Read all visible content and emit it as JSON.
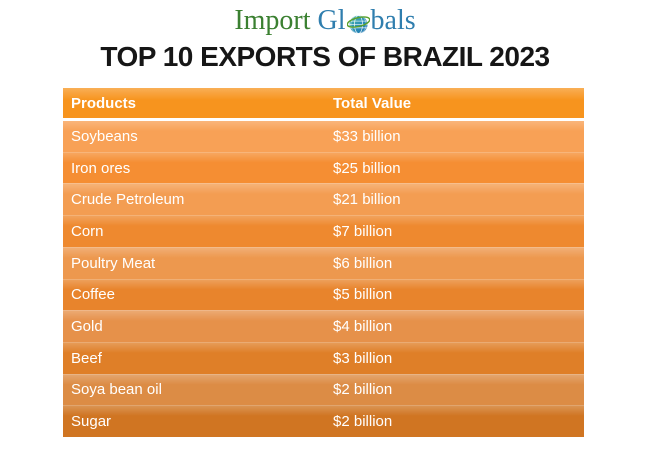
{
  "logo": {
    "text_part1": "Import ",
    "text_part2": "Gl",
    "text_part3": "bals",
    "green_color": "#3b8031",
    "blue_color": "#2f7eae"
  },
  "title": "TOP 10 EXPORTS OF BRAZIL 2023",
  "table": {
    "header_bg": "#F7941E",
    "headers": {
      "products": "Products",
      "total_value": "Total Value"
    },
    "rows": [
      {
        "product": "Soybeans",
        "value": "$33 billion",
        "bg": "#F8A156"
      },
      {
        "product": "Iron ores",
        "value": "$25 billion",
        "bg": "#F58E33"
      },
      {
        "product": "Crude Petroleum",
        "value": "$21 billion",
        "bg": "#F39D52"
      },
      {
        "product": "Corn",
        "value": "$7 billion",
        "bg": "#EE892F"
      },
      {
        "product": "Poultry Meat",
        "value": "$6 billion",
        "bg": "#ED984E"
      },
      {
        "product": "Coffee",
        "value": "$5 billion",
        "bg": "#E8842C"
      },
      {
        "product": "Gold",
        "value": "$4 billion",
        "bg": "#E6914A"
      },
      {
        "product": "Beef",
        "value": "$3 billion",
        "bg": "#DF7F28"
      },
      {
        "product": "Soya bean oil",
        "value": "$2 billion",
        "bg": "#DC8C45"
      },
      {
        "product": "Sugar",
        "value": "$2 billion",
        "bg": "#D07522"
      }
    ]
  },
  "chart_data": {
    "type": "table",
    "title": "TOP 10 EXPORTS OF BRAZIL 2023",
    "columns": [
      "Products",
      "Total Value"
    ],
    "rows": [
      [
        "Soybeans",
        "$33 billion"
      ],
      [
        "Iron ores",
        "$25 billion"
      ],
      [
        "Crude Petroleum",
        "$21 billion"
      ],
      [
        "Corn",
        "$7 billion"
      ],
      [
        "Poultry Meat",
        "$6 billion"
      ],
      [
        "Coffee",
        "$5 billion"
      ],
      [
        "Gold",
        "$4 billion"
      ],
      [
        "Beef",
        "$3 billion"
      ],
      [
        "Soya bean oil",
        "$2 billion"
      ],
      [
        "Sugar",
        "$2 billion"
      ]
    ],
    "values_numeric_usd_billion": [
      33,
      25,
      21,
      7,
      6,
      5,
      4,
      3,
      2,
      2
    ]
  }
}
